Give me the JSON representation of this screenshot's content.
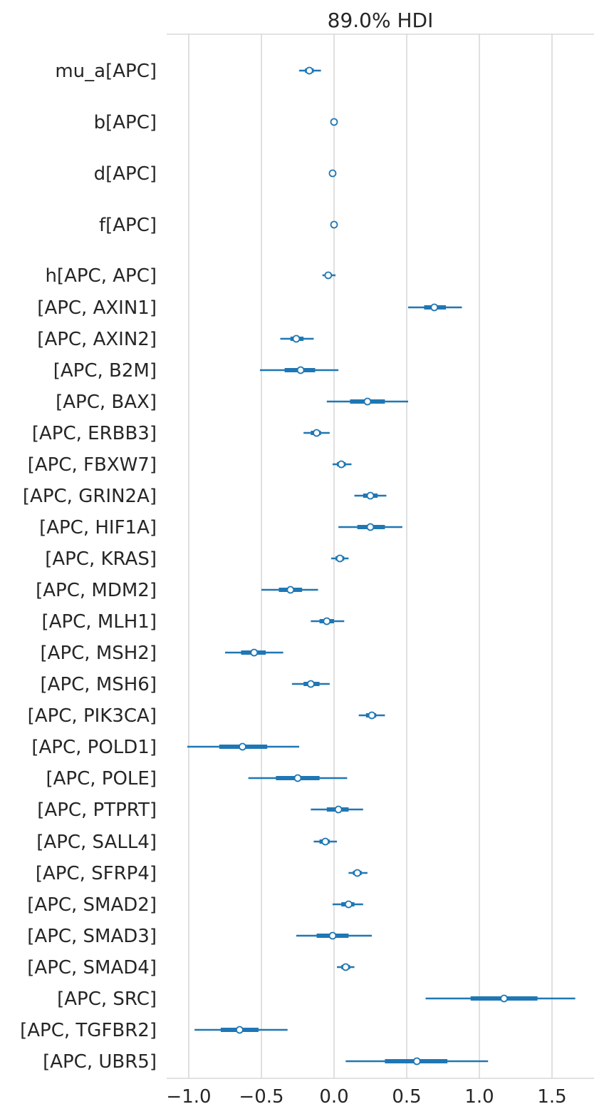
{
  "chart_data": {
    "type": "forest",
    "title": "89.0% HDI",
    "xlim": [
      -1.15,
      1.78
    ],
    "xticks": [
      -1.0,
      -0.5,
      0.0,
      0.5,
      1.0,
      1.5
    ],
    "xtick_labels": [
      "−1.0",
      "−0.5",
      "0.0",
      "0.5",
      "1.0",
      "1.5"
    ],
    "grid": "vertical",
    "color": "#1f77b4",
    "rows": [
      {
        "label": "mu_a[APC]",
        "mean": -0.17,
        "hdi_low": -0.24,
        "hdi_high": -0.09,
        "iqr_low": -0.2,
        "iqr_high": -0.14
      },
      {
        "label": "b[APC]",
        "mean": 0.0,
        "hdi_low": 0.0,
        "hdi_high": 0.0,
        "iqr_low": 0.0,
        "iqr_high": 0.0
      },
      {
        "label": "d[APC]",
        "mean": -0.01,
        "hdi_low": -0.01,
        "hdi_high": -0.01,
        "iqr_low": -0.01,
        "iqr_high": -0.01
      },
      {
        "label": "f[APC]",
        "mean": 0.0,
        "hdi_low": 0.0,
        "hdi_high": 0.0,
        "iqr_low": 0.0,
        "iqr_high": 0.0
      },
      {
        "label": "h[APC, APC]",
        "mean": -0.04,
        "hdi_low": -0.08,
        "hdi_high": 0.01,
        "iqr_low": -0.05,
        "iqr_high": -0.02
      },
      {
        "label": "[APC, AXIN1]",
        "mean": 0.69,
        "hdi_low": 0.51,
        "hdi_high": 0.88,
        "iqr_low": 0.62,
        "iqr_high": 0.77
      },
      {
        "label": "[APC, AXIN2]",
        "mean": -0.26,
        "hdi_low": -0.37,
        "hdi_high": -0.14,
        "iqr_low": -0.3,
        "iqr_high": -0.21
      },
      {
        "label": "[APC, B2M]",
        "mean": -0.23,
        "hdi_low": -0.51,
        "hdi_high": 0.03,
        "iqr_low": -0.34,
        "iqr_high": -0.13
      },
      {
        "label": "[APC, BAX]",
        "mean": 0.23,
        "hdi_low": -0.05,
        "hdi_high": 0.51,
        "iqr_low": 0.11,
        "iqr_high": 0.35
      },
      {
        "label": "[APC, ERBB3]",
        "mean": -0.12,
        "hdi_low": -0.21,
        "hdi_high": -0.03,
        "iqr_low": -0.16,
        "iqr_high": -0.09
      },
      {
        "label": "[APC, FBXW7]",
        "mean": 0.05,
        "hdi_low": -0.01,
        "hdi_high": 0.12,
        "iqr_low": 0.02,
        "iqr_high": 0.08
      },
      {
        "label": "[APC, GRIN2A]",
        "mean": 0.25,
        "hdi_low": 0.14,
        "hdi_high": 0.36,
        "iqr_low": 0.2,
        "iqr_high": 0.3
      },
      {
        "label": "[APC, HIF1A]",
        "mean": 0.25,
        "hdi_low": 0.03,
        "hdi_high": 0.47,
        "iqr_low": 0.16,
        "iqr_high": 0.35
      },
      {
        "label": "[APC, KRAS]",
        "mean": 0.04,
        "hdi_low": -0.02,
        "hdi_high": 0.1,
        "iqr_low": 0.01,
        "iqr_high": 0.07
      },
      {
        "label": "[APC, MDM2]",
        "mean": -0.3,
        "hdi_low": -0.5,
        "hdi_high": -0.11,
        "iqr_low": -0.38,
        "iqr_high": -0.22
      },
      {
        "label": "[APC, MLH1]",
        "mean": -0.05,
        "hdi_low": -0.16,
        "hdi_high": 0.07,
        "iqr_low": -0.1,
        "iqr_high": 0.0
      },
      {
        "label": "[APC, MSH2]",
        "mean": -0.55,
        "hdi_low": -0.75,
        "hdi_high": -0.35,
        "iqr_low": -0.64,
        "iqr_high": -0.47
      },
      {
        "label": "[APC, MSH6]",
        "mean": -0.16,
        "hdi_low": -0.29,
        "hdi_high": -0.03,
        "iqr_low": -0.21,
        "iqr_high": -0.1
      },
      {
        "label": "[APC, PIK3CA]",
        "mean": 0.26,
        "hdi_low": 0.17,
        "hdi_high": 0.35,
        "iqr_low": 0.22,
        "iqr_high": 0.29
      },
      {
        "label": "[APC, POLD1]",
        "mean": -0.63,
        "hdi_low": -1.01,
        "hdi_high": -0.24,
        "iqr_low": -0.79,
        "iqr_high": -0.46
      },
      {
        "label": "[APC, POLE]",
        "mean": -0.25,
        "hdi_low": -0.59,
        "hdi_high": 0.09,
        "iqr_low": -0.4,
        "iqr_high": -0.1
      },
      {
        "label": "[APC, PTPRT]",
        "mean": 0.03,
        "hdi_low": -0.16,
        "hdi_high": 0.2,
        "iqr_low": -0.05,
        "iqr_high": 0.1
      },
      {
        "label": "[APC, SALL4]",
        "mean": -0.06,
        "hdi_low": -0.14,
        "hdi_high": 0.02,
        "iqr_low": -0.1,
        "iqr_high": -0.03
      },
      {
        "label": "[APC, SFRP4]",
        "mean": 0.16,
        "hdi_low": 0.1,
        "hdi_high": 0.23,
        "iqr_low": 0.13,
        "iqr_high": 0.19
      },
      {
        "label": "[APC, SMAD2]",
        "mean": 0.1,
        "hdi_low": -0.01,
        "hdi_high": 0.2,
        "iqr_low": 0.05,
        "iqr_high": 0.14
      },
      {
        "label": "[APC, SMAD3]",
        "mean": -0.01,
        "hdi_low": -0.26,
        "hdi_high": 0.26,
        "iqr_low": -0.12,
        "iqr_high": 0.1
      },
      {
        "label": "[APC, SMAD4]",
        "mean": 0.08,
        "hdi_low": 0.02,
        "hdi_high": 0.14,
        "iqr_low": 0.05,
        "iqr_high": 0.11
      },
      {
        "label": "[APC, SRC]",
        "mean": 1.17,
        "hdi_low": 0.63,
        "hdi_high": 1.66,
        "iqr_low": 0.94,
        "iqr_high": 1.4
      },
      {
        "label": "[APC, TGFBR2]",
        "mean": -0.65,
        "hdi_low": -0.96,
        "hdi_high": -0.32,
        "iqr_low": -0.78,
        "iqr_high": -0.52
      },
      {
        "label": "[APC, UBR5]",
        "mean": 0.57,
        "hdi_low": 0.08,
        "hdi_high": 1.06,
        "iqr_low": 0.35,
        "iqr_high": 0.78
      }
    ]
  }
}
